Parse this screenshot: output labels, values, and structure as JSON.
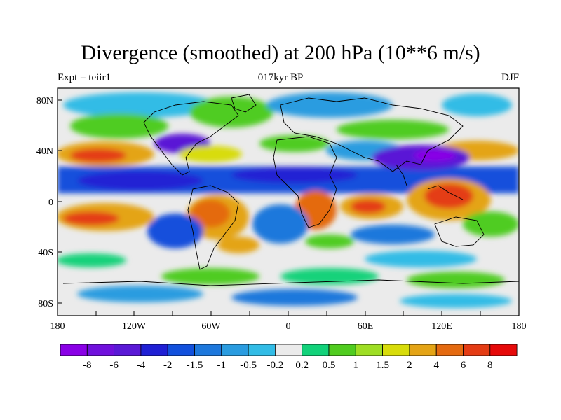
{
  "figure": {
    "title": "Divergence (smoothed) at 200 hPa (10**6 m/s)",
    "left_label": "Expt = teiir1",
    "center_label": "017kyr BP",
    "right_label": "DJF"
  },
  "axes": {
    "x_ticks": [
      "180",
      "120W",
      "60W",
      "0",
      "60E",
      "120E",
      "180"
    ],
    "y_ticks": [
      "80N",
      "40N",
      "0",
      "40S",
      "80S"
    ],
    "x_range_lon": [
      -180,
      180
    ],
    "y_range_lat": [
      -90,
      90
    ]
  },
  "colorbar": {
    "labels": [
      "-8",
      "-6",
      "-4",
      "-2",
      "-1.5",
      "-1",
      "-0.5",
      "-0.2",
      "0.2",
      "0.5",
      "1",
      "1.5",
      "2",
      "4",
      "6",
      "8"
    ],
    "colors": [
      "#8a00e6",
      "#7010dc",
      "#5a19d6",
      "#2020d4",
      "#1250dc",
      "#1e78dc",
      "#2a9ce0",
      "#32bce6",
      "#ebebeb",
      "#12d27a",
      "#50cc20",
      "#9ede24",
      "#d8dc0a",
      "#e4a416",
      "#e46a10",
      "#e43c14",
      "#e60a0a"
    ]
  },
  "colors": {
    "background": "#ffffff",
    "land_outline": "#000000",
    "frame": "#000000"
  }
}
